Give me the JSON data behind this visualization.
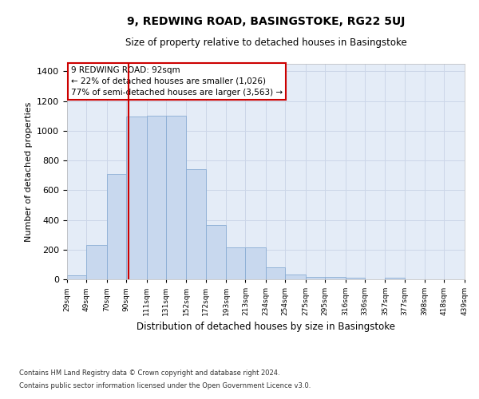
{
  "title": "9, REDWING ROAD, BASINGSTOKE, RG22 5UJ",
  "subtitle": "Size of property relative to detached houses in Basingstoke",
  "xlabel": "Distribution of detached houses by size in Basingstoke",
  "ylabel": "Number of detached properties",
  "footnote1": "Contains HM Land Registry data © Crown copyright and database right 2024.",
  "footnote2": "Contains public sector information licensed under the Open Government Licence v3.0.",
  "bar_color": "#c8d8ee",
  "bar_edge_color": "#8aadd4",
  "grid_color": "#ccd6e8",
  "bg_color": "#e4ecf7",
  "vline_x": 92,
  "vline_color": "#cc0000",
  "annotation_text": "9 REDWING ROAD: 92sqm\n← 22% of detached houses are smaller (1,026)\n77% of semi-detached houses are larger (3,563) →",
  "annotation_box_color": "white",
  "annotation_box_edge": "#cc0000",
  "bin_edges": [
    29,
    49,
    70,
    90,
    111,
    131,
    152,
    172,
    193,
    213,
    234,
    254,
    275,
    295,
    316,
    336,
    357,
    377,
    398,
    418,
    439
  ],
  "bar_heights": [
    28,
    232,
    710,
    1095,
    1100,
    1100,
    740,
    365,
    215,
    215,
    82,
    30,
    18,
    18,
    12,
    0,
    9,
    0,
    0,
    0
  ],
  "ylim": [
    0,
    1450
  ],
  "yticks": [
    0,
    200,
    400,
    600,
    800,
    1000,
    1200,
    1400
  ]
}
